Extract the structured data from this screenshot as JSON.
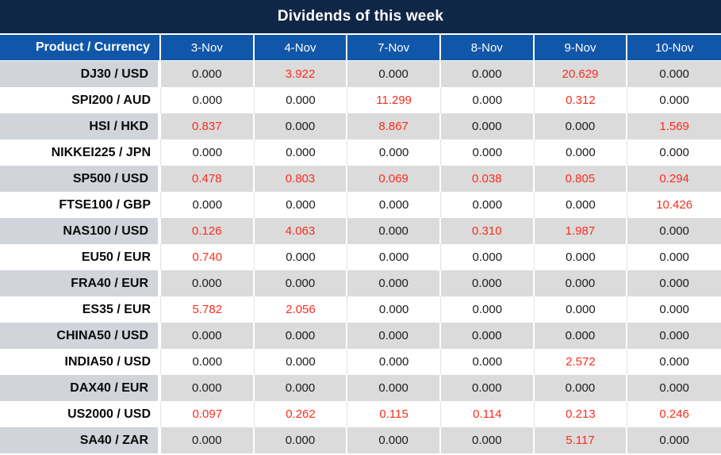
{
  "title": "Dividends of this week",
  "colors": {
    "navy": "#102647",
    "blue": "#1157A9",
    "label_gray": "#D1D4DA",
    "row_gray": "#DBDBDB",
    "sep": "#E3E3E3",
    "red": "#FB2C1D",
    "text": "#1B1B1B"
  },
  "chart_data": {
    "type": "table",
    "title": "Dividends of this week",
    "label_header": "Product / Currency",
    "columns": [
      "3-Nov",
      "4-Nov",
      "7-Nov",
      "8-Nov",
      "9-Nov",
      "10-Nov"
    ],
    "value_color_rule": "positive values shown in red, zeros in black",
    "rows": [
      {
        "product": "DJ30 / USD",
        "values": [
          "0.000",
          "3.922",
          "0.000",
          "0.000",
          "20.629",
          "0.000"
        ]
      },
      {
        "product": "SPI200 / AUD",
        "values": [
          "0.000",
          "0.000",
          "11.299",
          "0.000",
          "0.312",
          "0.000"
        ]
      },
      {
        "product": "HSI / HKD",
        "values": [
          "0.837",
          "0.000",
          "8.867",
          "0.000",
          "0.000",
          "1.569"
        ]
      },
      {
        "product": "NIKKEI225 / JPN",
        "values": [
          "0.000",
          "0.000",
          "0.000",
          "0.000",
          "0.000",
          "0.000"
        ]
      },
      {
        "product": "SP500 / USD",
        "values": [
          "0.478",
          "0.803",
          "0.069",
          "0.038",
          "0.805",
          "0.294"
        ]
      },
      {
        "product": "FTSE100 / GBP",
        "values": [
          "0.000",
          "0.000",
          "0.000",
          "0.000",
          "0.000",
          "10.426"
        ]
      },
      {
        "product": "NAS100 / USD",
        "values": [
          "0.126",
          "4.063",
          "0.000",
          "0.310",
          "1.987",
          "0.000"
        ]
      },
      {
        "product": "EU50 / EUR",
        "values": [
          "0.740",
          "0.000",
          "0.000",
          "0.000",
          "0.000",
          "0.000"
        ]
      },
      {
        "product": "FRA40 / EUR",
        "values": [
          "0.000",
          "0.000",
          "0.000",
          "0.000",
          "0.000",
          "0.000"
        ]
      },
      {
        "product": "ES35 / EUR",
        "values": [
          "5.782",
          "2.056",
          "0.000",
          "0.000",
          "0.000",
          "0.000"
        ]
      },
      {
        "product": "CHINA50 / USD",
        "values": [
          "0.000",
          "0.000",
          "0.000",
          "0.000",
          "0.000",
          "0.000"
        ]
      },
      {
        "product": "INDIA50 / USD",
        "values": [
          "0.000",
          "0.000",
          "0.000",
          "0.000",
          "2.572",
          "0.000"
        ]
      },
      {
        "product": "DAX40 / EUR",
        "values": [
          "0.000",
          "0.000",
          "0.000",
          "0.000",
          "0.000",
          "0.000"
        ]
      },
      {
        "product": "US2000 / USD",
        "values": [
          "0.097",
          "0.262",
          "0.115",
          "0.114",
          "0.213",
          "0.246"
        ]
      },
      {
        "product": "SA40 / ZAR",
        "values": [
          "0.000",
          "0.000",
          "0.000",
          "0.000",
          "5.117",
          "0.000"
        ]
      }
    ]
  }
}
